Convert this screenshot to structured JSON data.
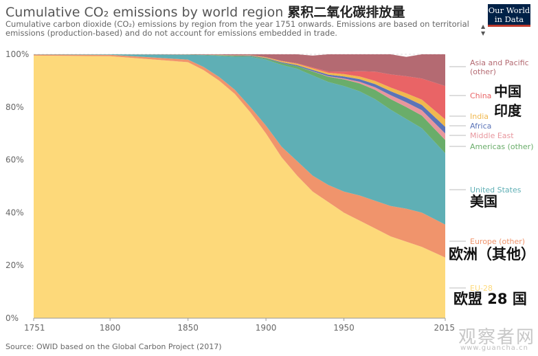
{
  "header": {
    "title": "Cumulative CO₂ emissions by world region",
    "title_zh": "累积二氧化碳排放量",
    "subtitle": "Cumulative carbon dioxide (CO₂) emissions by region from the year 1751 onwards. Emissions are based on territorial emissions (production-based) and do not account for emissions embedded in trade."
  },
  "logo": {
    "line1": "Our World",
    "line2": "in Data"
  },
  "source": "Source: OWID based on the Global Carbon Project (2017)",
  "watermark": {
    "text": "观察者网",
    "sub": "www.guancha.cn"
  },
  "chart_data": {
    "type": "area",
    "stacked": true,
    "normalized": true,
    "x": [
      1751,
      1800,
      1850,
      1860,
      1870,
      1880,
      1890,
      1900,
      1910,
      1920,
      1930,
      1940,
      1950,
      1960,
      1970,
      1980,
      1990,
      2000,
      2015
    ],
    "xticks": [
      "1751",
      "1800",
      "1850",
      "1900",
      "1950",
      "2015"
    ],
    "yticks": [
      "0%",
      "20%",
      "40%",
      "60%",
      "80%",
      "100%"
    ],
    "ylim": [
      0,
      100
    ],
    "grid": true,
    "legend": "right",
    "series": [
      {
        "name": "EU-28",
        "color": "#fdd97a",
        "values": [
          99.5,
          99.3,
          97,
          94,
          90,
          85,
          78,
          70,
          61,
          54,
          48,
          44,
          40,
          37,
          34,
          31,
          29,
          27,
          23
        ]
      },
      {
        "name": "Europe (other)",
        "color": "#f0946c",
        "values": [
          0.4,
          0.5,
          1,
          1.2,
          1.4,
          1.6,
          2,
          3,
          4,
          5.5,
          6,
          6.5,
          8,
          9.5,
          10.5,
          11.5,
          12.5,
          13,
          12.5
        ]
      },
      {
        "name": "United States",
        "color": "#5fafb5",
        "values": [
          0.1,
          0.2,
          1.8,
          4.5,
          8,
          12.5,
          19,
          25,
          31,
          35,
          38,
          39,
          40,
          39.5,
          38.5,
          36.5,
          34,
          32,
          27
        ]
      },
      {
        "name": "Americas (other)",
        "color": "#6aad6a",
        "values": [
          0,
          0,
          0.1,
          0.1,
          0.2,
          0.3,
          0.3,
          0.4,
          0.7,
          1,
          1.5,
          2,
          2.5,
          3,
          3.5,
          4,
          4.5,
          4.8,
          5
        ]
      },
      {
        "name": "Middle East",
        "color": "#e8969d",
        "values": [
          0,
          0,
          0,
          0,
          0,
          0,
          0,
          0,
          0,
          0,
          0.1,
          0.2,
          0.3,
          0.6,
          1,
          1.5,
          1.8,
          2,
          2.5
        ]
      },
      {
        "name": "Africa",
        "color": "#5b74b8",
        "values": [
          0,
          0,
          0,
          0,
          0.1,
          0.1,
          0.2,
          0.2,
          0.3,
          0.4,
          0.5,
          0.6,
          0.8,
          1,
          1.2,
          1.5,
          1.8,
          2,
          2.5
        ]
      },
      {
        "name": "India",
        "color": "#f0b84e",
        "values": [
          0,
          0,
          0,
          0,
          0.1,
          0.1,
          0.2,
          0.3,
          0.4,
          0.5,
          0.6,
          0.7,
          0.9,
          1,
          1.2,
          1.4,
          1.6,
          2,
          2.8
        ]
      },
      {
        "name": "China",
        "color": "#e96466",
        "values": [
          0,
          0,
          0,
          0,
          0,
          0,
          0,
          0,
          0.1,
          0.2,
          0.3,
          0.5,
          0.9,
          2,
          3.5,
          5,
          6.5,
          8,
          12.7
        ]
      },
      {
        "name": "Asia and Pacific (other)",
        "color": "#b46a72",
        "values": [
          0,
          0,
          0.1,
          0.2,
          0.2,
          0.4,
          0.3,
          1.1,
          2.5,
          3.4,
          4.5,
          6.5,
          6.6,
          6.4,
          6.6,
          7.6,
          7.3,
          9.2,
          12
        ]
      }
    ],
    "labels_zh": [
      {
        "text": "中国",
        "series": "China"
      },
      {
        "text": "印度",
        "series": "India"
      },
      {
        "text": "美国",
        "series": "United States"
      },
      {
        "text": "欧洲（其他）",
        "series": "Europe (other)"
      },
      {
        "text": "欧盟 28 国",
        "series": "EU-28"
      }
    ]
  }
}
